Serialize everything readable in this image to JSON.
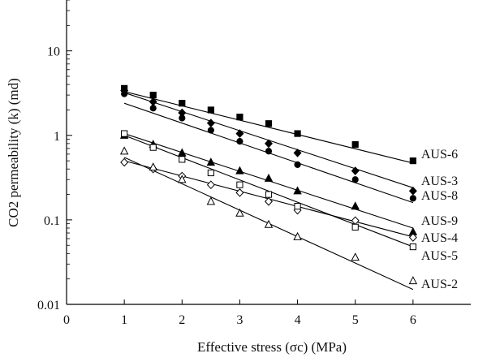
{
  "chart_data": {
    "type": "scatter",
    "xlabel": "Effective stress (σc) (MPa)",
    "ylabel": "CO2 permeability (k) (md)",
    "x_ticks": [
      "0",
      "1",
      "2",
      "3",
      "4",
      "5",
      "6"
    ],
    "y_ticks": [
      "0.01",
      "0.1",
      "1",
      "10"
    ],
    "xlim": [
      0,
      7
    ],
    "ylim": [
      0.01,
      40
    ],
    "yscale": "log",
    "grid": false,
    "series": [
      {
        "name": "AUS-6",
        "marker": "square-filled",
        "x": [
          1,
          1.5,
          2,
          2.5,
          3,
          3.5,
          4,
          5,
          6
        ],
        "y": [
          3.6,
          3.0,
          2.4,
          2.0,
          1.65,
          1.38,
          1.05,
          0.78,
          0.5
        ],
        "fit": [
          [
            1,
            3.3
          ],
          [
            6,
            0.47
          ]
        ]
      },
      {
        "name": "AUS-3",
        "marker": "diamond-filled",
        "x": [
          1,
          1.5,
          2,
          2.5,
          3,
          3.5,
          4,
          5,
          6
        ],
        "y": [
          3.4,
          2.5,
          1.85,
          1.4,
          1.05,
          0.8,
          0.62,
          0.38,
          0.22
        ],
        "fit": [
          [
            1,
            3.2
          ],
          [
            6,
            0.24
          ]
        ]
      },
      {
        "name": "AUS-8",
        "marker": "circle-filled",
        "x": [
          1,
          1.5,
          2,
          2.5,
          3,
          3.5,
          4,
          5,
          6
        ],
        "y": [
          3.1,
          2.1,
          1.6,
          1.15,
          0.85,
          0.65,
          0.45,
          0.3,
          0.18
        ],
        "fit": [
          [
            1,
            2.4
          ],
          [
            6,
            0.16
          ]
        ]
      },
      {
        "name": "AUS-9",
        "marker": "triangle-filled",
        "x": [
          1,
          1.5,
          2,
          2.5,
          3,
          3.5,
          4,
          5,
          6
        ],
        "y": [
          1.0,
          0.78,
          0.62,
          0.48,
          0.38,
          0.31,
          0.22,
          0.145,
          0.072
        ],
        "fit": [
          [
            1,
            1.05
          ],
          [
            6,
            0.08
          ]
        ]
      },
      {
        "name": "AUS-4",
        "marker": "diamond-open",
        "x": [
          1,
          1.5,
          2,
          2.5,
          3,
          3.5,
          4,
          5,
          6
        ],
        "y": [
          0.48,
          0.4,
          0.33,
          0.26,
          0.21,
          0.165,
          0.13,
          0.098,
          0.062
        ],
        "fit": [
          [
            1,
            0.5
          ],
          [
            6,
            0.063
          ]
        ]
      },
      {
        "name": "AUS-5",
        "marker": "square-open",
        "x": [
          1,
          1.5,
          2,
          2.5,
          3,
          3.5,
          4,
          5,
          6
        ],
        "y": [
          1.05,
          0.72,
          0.52,
          0.36,
          0.26,
          0.2,
          0.145,
          0.082,
          0.048
        ],
        "fit": [
          [
            1,
            1.0
          ],
          [
            6,
            0.048
          ]
        ]
      },
      {
        "name": "AUS-2",
        "marker": "triangle-open",
        "x": [
          1,
          1.5,
          2,
          2.5,
          3,
          3.5,
          4,
          5,
          6
        ],
        "y": [
          0.65,
          0.42,
          0.3,
          0.165,
          0.12,
          0.088,
          0.063,
          0.036,
          0.019
        ],
        "fit": [
          [
            1,
            0.55
          ],
          [
            6,
            0.015
          ]
        ]
      }
    ]
  }
}
